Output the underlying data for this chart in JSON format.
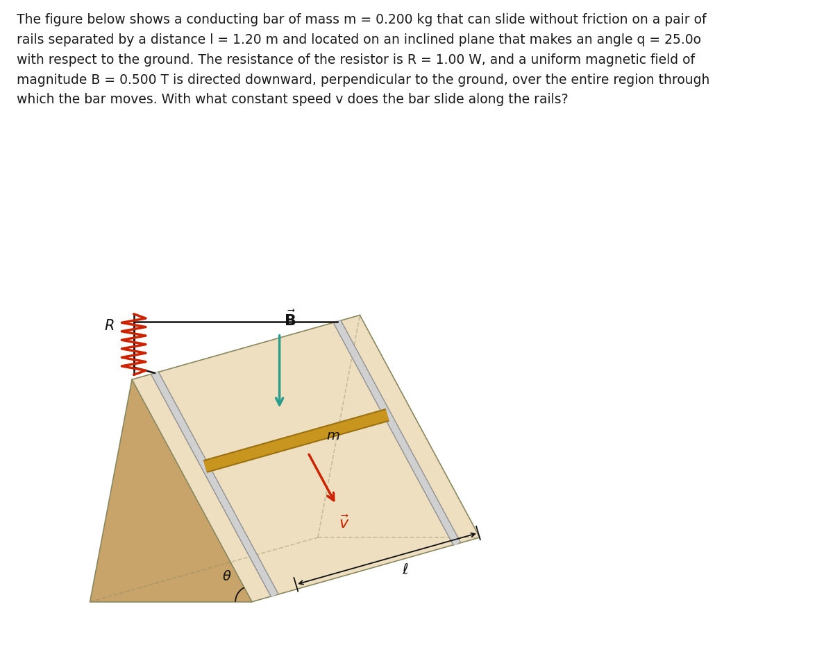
{
  "text_paragraph": "The figure below shows a conducting bar of mass m = 0.200 kg that can slide without friction on a pair of\nrails separated by a distance l = 1.20 m and located on an inclined plane that makes an angle q = 25.0o\nwith respect to the ground. The resistance of the resistor is R = 1.00 W, and a uniform magnetic field of\nmagnitude B = 0.500 T is directed downward, perpendicular to the ground, over the entire region through\nwhich the bar moves. With what constant speed v does the bar slide along the rails?",
  "background_color": "#ffffff",
  "text_color": "#1a1a1a",
  "text_fontsize": 13.5,
  "incline_side_color": "#c8a46a",
  "incline_top_color": "#eddfc0",
  "incline_bottom_color": "#b8944a",
  "rail_color": "#d0d0d0",
  "rail_edge_color": "#909090",
  "bar_color": "#c8961e",
  "bar_edge_color": "#9a7010",
  "resistor_color": "#cc2200",
  "wire_color": "#111111",
  "B_arrow_color": "#2a9d8f",
  "v_arrow_color": "#cc2200",
  "label_color": "#111111",
  "dim_color": "#111111"
}
